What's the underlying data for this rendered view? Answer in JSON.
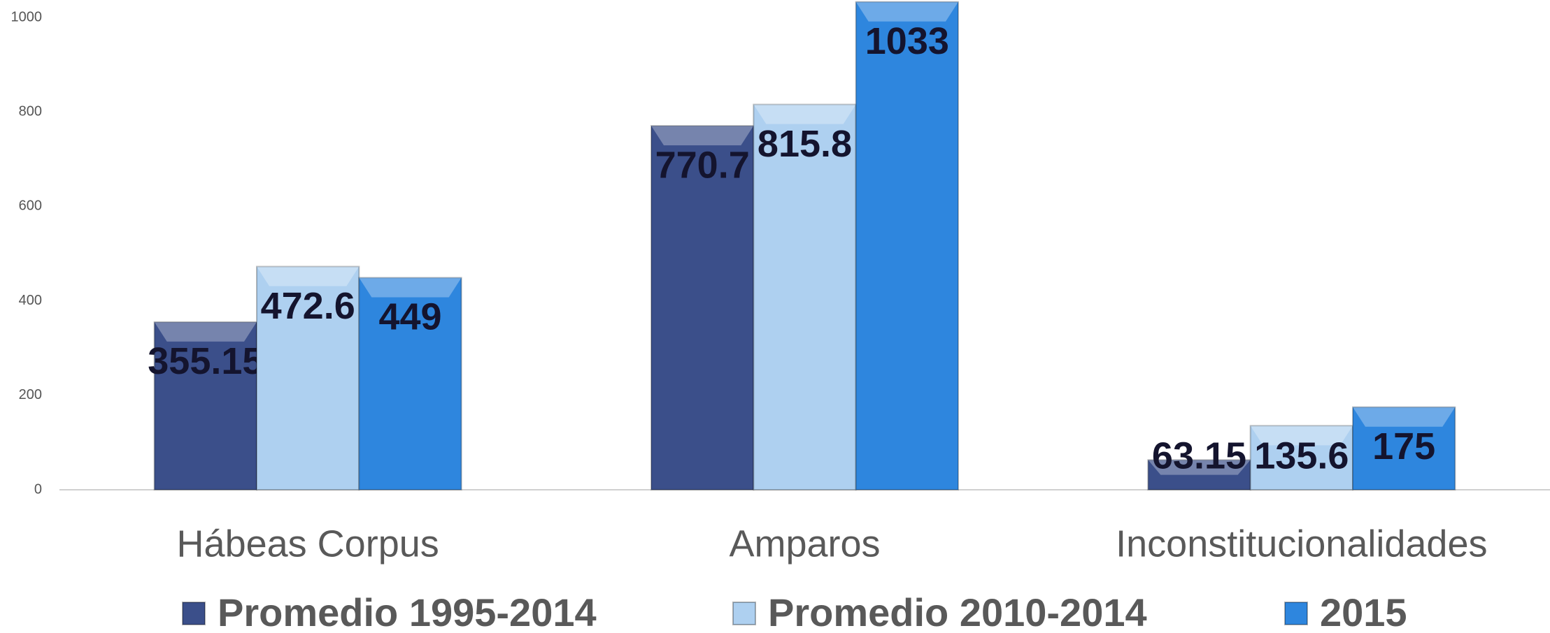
{
  "chart_data": {
    "type": "bar",
    "categories": [
      "Hábeas Corpus",
      "Amparos",
      "Inconstitucionalidades"
    ],
    "series": [
      {
        "name": "Promedio 1995-2014",
        "color": "#3b4f8a",
        "values": [
          355.15,
          770.7,
          63.15
        ]
      },
      {
        "name": "Promedio 2010-2014",
        "color": "#aed0f0",
        "values": [
          472.6,
          815.8,
          135.6
        ]
      },
      {
        "name": "2015",
        "color": "#2e86de",
        "values": [
          449,
          1033,
          175
        ]
      }
    ],
    "ylim": [
      0,
      1037
    ],
    "yticks": [
      0,
      200,
      400,
      600,
      800,
      1000
    ],
    "grid": false
  }
}
